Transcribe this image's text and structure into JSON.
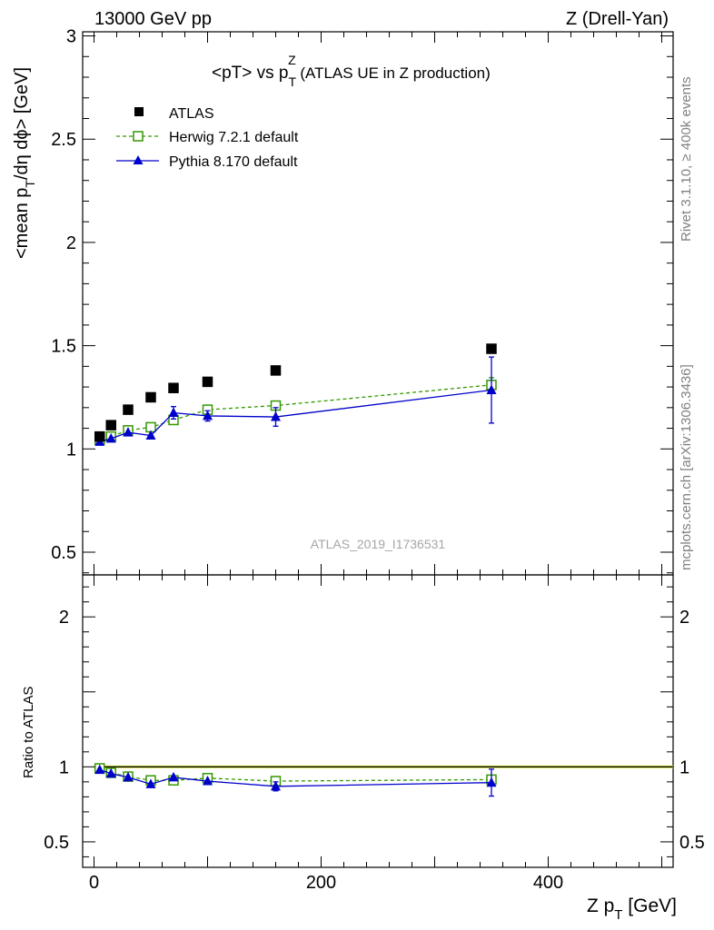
{
  "header": {
    "left": "13000 GeV pp",
    "right": "Z (Drell-Yan)"
  },
  "title": {
    "main": "<pT> vs p",
    "sub": "T",
    "sup": "Z",
    "suffix": " (ATLAS UE in Z production)"
  },
  "side": {
    "rivet": "Rivet 3.1.10, ≥ 400k events",
    "mcplots": "mcplots.cern.ch [arXiv:1306.3436]"
  },
  "watermark": "ATLAS_2019_I1736531",
  "axes": {
    "ylabel_main": {
      "a": "<mean p",
      "sub": "T",
      "b": "/dη dϕ> [GeV]"
    },
    "ylabel_ratio": "Ratio to ATLAS",
    "xlabel": {
      "a": "Z p",
      "sub": "T",
      "b": " [GeV]"
    }
  },
  "legend": {
    "atlas": "ATLAS",
    "herwig": "Herwig 7.2.1 default",
    "pythia": "Pythia 8.170 default"
  },
  "colors": {
    "data": "#000000",
    "herwig": "#339900",
    "pythia": "#0000cc",
    "band": "#f0ff66"
  },
  "chart_data": [
    {
      "type": "scatter",
      "panel": "main",
      "title": "<pT> vs pTZ (ATLAS UE in Z production)",
      "xlabel": "Z pT [GeV]",
      "ylabel": "<mean pT/dη dϕ> [GeV]",
      "xlim": [
        -10,
        510
      ],
      "ylim": [
        0.39,
        3.02
      ],
      "yticks": [
        0.5,
        1,
        1.5,
        2,
        2.5,
        3
      ],
      "ytick_labels": [
        "0.5",
        "1",
        "1.5",
        "2",
        "2.5",
        "3"
      ],
      "legend_position": "top-left",
      "series": [
        {
          "name": "ATLAS",
          "marker": "square-filled",
          "x": [
            5,
            15,
            30,
            50,
            70,
            100,
            160,
            350
          ],
          "y": [
            1.06,
            1.115,
            1.19,
            1.25,
            1.295,
            1.325,
            1.38,
            1.485
          ]
        },
        {
          "name": "Herwig 7.2.1 default",
          "marker": "square-open",
          "line": "dashed",
          "x": [
            5,
            15,
            30,
            50,
            70,
            100,
            160,
            350
          ],
          "y": [
            1.045,
            1.06,
            1.09,
            1.105,
            1.14,
            1.19,
            1.21,
            1.31
          ],
          "yerr": [
            0.006,
            0.006,
            0.007,
            0.008,
            0.01,
            0.012,
            0.02,
            0.035
          ]
        },
        {
          "name": "Pythia 8.170 default",
          "marker": "triangle",
          "line": "solid",
          "x": [
            5,
            15,
            30,
            50,
            70,
            100,
            160,
            350
          ],
          "y": [
            1.035,
            1.05,
            1.08,
            1.065,
            1.175,
            1.16,
            1.155,
            1.285
          ],
          "yerr": [
            0.01,
            0.01,
            0.012,
            0.015,
            0.03,
            0.025,
            0.045,
            0.16
          ]
        }
      ]
    },
    {
      "type": "scatter",
      "panel": "ratio",
      "ylabel": "Ratio to ATLAS",
      "xlabel": "Z pT [GeV]",
      "xlim": [
        -10,
        510
      ],
      "ylim": [
        0.33,
        2.28
      ],
      "xticks": [
        0,
        200,
        400
      ],
      "xtick_labels": [
        "0",
        "200",
        "400"
      ],
      "yticks": [
        0.5,
        1,
        2
      ],
      "ytick_labels": [
        "0.5",
        "1",
        "2"
      ],
      "band": {
        "x": [
          0,
          510
        ],
        "low": 0.99,
        "high": 1.01
      },
      "series": [
        {
          "name": "Herwig 7.2.1 default",
          "marker": "square-open",
          "line": "dashed",
          "x": [
            5,
            15,
            30,
            50,
            70,
            100,
            160,
            350
          ],
          "y": [
            0.99,
            0.96,
            0.935,
            0.91,
            0.91,
            0.925,
            0.905,
            0.915
          ],
          "yerr": [
            0.006,
            0.006,
            0.007,
            0.008,
            0.01,
            0.012,
            0.015,
            0.025
          ]
        },
        {
          "name": "Pythia 8.170 default",
          "marker": "triangle",
          "line": "solid",
          "x": [
            5,
            15,
            30,
            50,
            70,
            100,
            160,
            350
          ],
          "y": [
            0.98,
            0.955,
            0.93,
            0.885,
            0.93,
            0.905,
            0.87,
            0.895
          ],
          "yerr": [
            0.01,
            0.01,
            0.012,
            0.015,
            0.02,
            0.02,
            0.03,
            0.09
          ]
        }
      ]
    }
  ]
}
